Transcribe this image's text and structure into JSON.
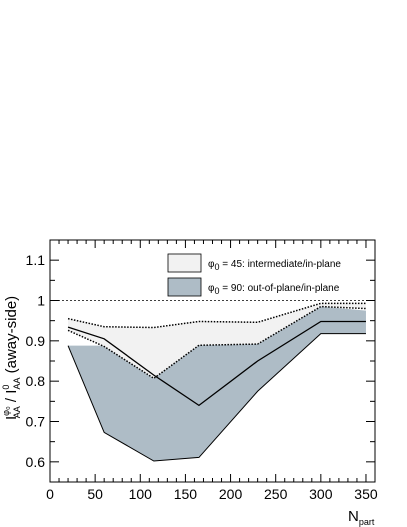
{
  "chart_data": {
    "type": "area",
    "xlabel": {
      "base": "N",
      "sub": "part"
    },
    "ylabel": {
      "prefix": "I",
      "sup1": "φ₀",
      "sub1": "AA",
      "mid": " / I",
      "sup2": "0",
      "sub2": "AA",
      "suffix": " (away-side)"
    },
    "xlim": [
      0,
      360
    ],
    "ylim": [
      0.55,
      1.15
    ],
    "xticks": [
      0,
      50,
      100,
      150,
      200,
      250,
      300,
      350
    ],
    "yticks": [
      0.6,
      0.7,
      0.8,
      0.9,
      1.0,
      1.1
    ],
    "ytick_labels": [
      "0.6",
      "0.7",
      "0.8",
      "0.9",
      "1",
      "1.1"
    ],
    "reference_line": 1.0,
    "series": [
      {
        "name": "φ0 = 45: intermediate/in-plane",
        "color": "#f2f2f2",
        "x": [
          20,
          60,
          115,
          165,
          230,
          300,
          350
        ],
        "upper": [
          0.955,
          0.935,
          0.933,
          0.948,
          0.946,
          0.993,
          0.993
        ],
        "lower": [
          0.926,
          0.886,
          0.807,
          0.889,
          0.892,
          0.985,
          0.98
        ],
        "central": [
          0.934,
          0.905,
          0.815,
          0.74,
          0.85,
          0.948,
          0.948
        ]
      },
      {
        "name": "φ0 = 90: out-of-plane/in-plane",
        "color": "#aebcc6",
        "x": [
          20,
          60,
          115,
          165,
          230,
          300,
          350
        ],
        "upper": [
          0.888,
          0.888,
          0.807,
          0.892,
          0.892,
          0.985,
          0.975
        ],
        "lower": [
          0.888,
          0.673,
          0.602,
          0.611,
          0.775,
          0.918,
          0.918
        ]
      }
    ],
    "legend": {
      "placement": "top-right",
      "entries": [
        {
          "label": "φ0 = 45: intermediate/in-plane",
          "sym": "φ",
          "sub": "0",
          "text": " = 45: intermediate/in-plane"
        },
        {
          "label": "φ0 = 90: out-of-plane/in-plane",
          "sym": "φ",
          "sub": "0",
          "text": " = 90: out-of-plane/in-plane"
        }
      ]
    }
  }
}
